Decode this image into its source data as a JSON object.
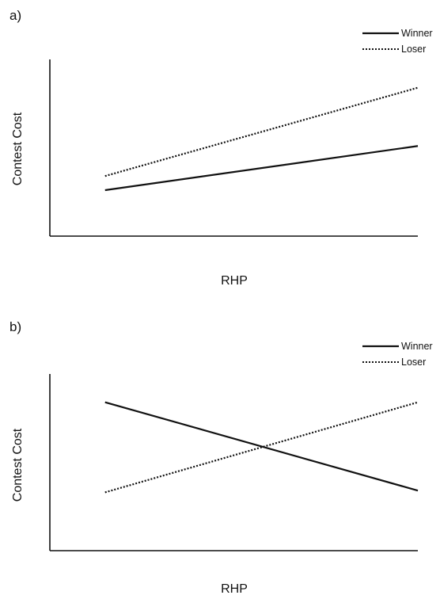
{
  "chart_data": [
    {
      "type": "line",
      "panel_label": "a)",
      "xlabel": "RHP",
      "ylabel": "Contest Cost",
      "xlim": [
        0,
        1
      ],
      "ylim": [
        0,
        1
      ],
      "x_ticks_shown": false,
      "y_ticks_shown": false,
      "grid": false,
      "legend_position": "top-right",
      "series": [
        {
          "name": "Winner",
          "line_style": "solid",
          "color": "#111111",
          "x": [
            0.15,
            1.0
          ],
          "y": [
            0.26,
            0.51
          ]
        },
        {
          "name": "Loser",
          "line_style": "dotted",
          "color": "#111111",
          "x": [
            0.15,
            1.0
          ],
          "y": [
            0.34,
            0.84
          ]
        }
      ]
    },
    {
      "type": "line",
      "panel_label": "b)",
      "xlabel": "RHP",
      "ylabel": "Contest Cost",
      "xlim": [
        0,
        1
      ],
      "ylim": [
        0,
        1
      ],
      "x_ticks_shown": false,
      "y_ticks_shown": false,
      "grid": false,
      "legend_position": "top-right",
      "series": [
        {
          "name": "Winner",
          "line_style": "solid",
          "color": "#111111",
          "x": [
            0.15,
            1.0
          ],
          "y": [
            0.84,
            0.34
          ]
        },
        {
          "name": "Loser",
          "line_style": "dotted",
          "color": "#111111",
          "x": [
            0.15,
            1.0
          ],
          "y": [
            0.33,
            0.84
          ]
        }
      ]
    }
  ]
}
